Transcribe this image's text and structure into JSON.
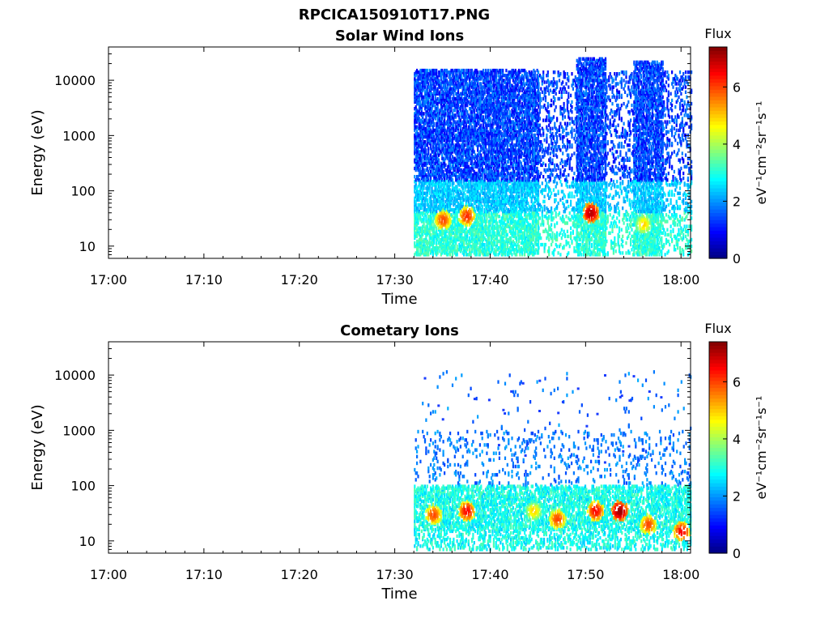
{
  "figure": {
    "title": "RPCICA150910T17.PNG",
    "time_ticks": [
      "17:00",
      "17:10",
      "17:20",
      "17:30",
      "17:40",
      "17:50",
      "18:00"
    ],
    "energy_ticks": [
      "10",
      "100",
      "1000",
      "10000"
    ]
  },
  "chart_data": [
    {
      "type": "heatmap",
      "title": "Solar Wind Ions",
      "xlabel": "Time",
      "ylabel": "Energy (eV)",
      "x_range": [
        "17:00",
        "18:01"
      ],
      "y_scale": "log",
      "ylim": [
        6,
        40000
      ],
      "colorbar": {
        "title": "Flux",
        "unit_label": "eV⁻¹cm⁻²sr⁻¹s⁻¹",
        "range": [
          0,
          7.4
        ],
        "ticks": [
          "0",
          "2",
          "4",
          "6"
        ],
        "colormap": "jet"
      },
      "data_intervals": [
        {
          "start": "17:32",
          "end": "17:45",
          "e_max": 15000
        },
        {
          "start": "17:45",
          "end": "17:49",
          "e_max": 14000,
          "sparse": true
        },
        {
          "start": "17:49",
          "end": "17:52",
          "e_max": 25000
        },
        {
          "start": "17:52",
          "end": "17:55",
          "e_max": 14000,
          "sparse": true
        },
        {
          "start": "17:55",
          "end": "17:58",
          "e_max": 22000
        },
        {
          "start": "17:58",
          "end": "18:01",
          "e_max": 14000,
          "sparse": true
        }
      ],
      "peaks": [
        {
          "time": "17:35",
          "energy": 30,
          "flux": 6.0
        },
        {
          "time": "17:37.5",
          "energy": 35,
          "flux": 6.2
        },
        {
          "time": "17:50.5",
          "energy": 40,
          "flux": 7.0
        },
        {
          "time": "17:56",
          "energy": 25,
          "flux": 5.0
        }
      ]
    },
    {
      "type": "heatmap",
      "title": "Cometary Ions",
      "xlabel": "Time",
      "ylabel": "Energy (eV)",
      "x_range": [
        "17:00",
        "18:01"
      ],
      "y_scale": "log",
      "ylim": [
        6,
        40000
      ],
      "colorbar": {
        "title": "Flux",
        "unit_label": "eV⁻¹cm⁻²sr⁻¹s⁻¹",
        "range": [
          0,
          7.4
        ],
        "ticks": [
          "0",
          "2",
          "4",
          "6"
        ],
        "colormap": "jet"
      },
      "data_intervals": [
        {
          "start": "17:32",
          "end": "18:01",
          "e_max": 12000,
          "sparse": true
        }
      ],
      "peaks": [
        {
          "time": "17:34",
          "energy": 30,
          "flux": 6.0
        },
        {
          "time": "17:37.5",
          "energy": 35,
          "flux": 6.5
        },
        {
          "time": "17:44.5",
          "energy": 35,
          "flux": 5.0
        },
        {
          "time": "17:47",
          "energy": 25,
          "flux": 6.0
        },
        {
          "time": "17:51",
          "energy": 35,
          "flux": 6.5
        },
        {
          "time": "17:53.5",
          "energy": 35,
          "flux": 7.2
        },
        {
          "time": "17:56.5",
          "energy": 20,
          "flux": 6.0
        },
        {
          "time": "18:00",
          "energy": 15,
          "flux": 6.5
        }
      ]
    }
  ]
}
